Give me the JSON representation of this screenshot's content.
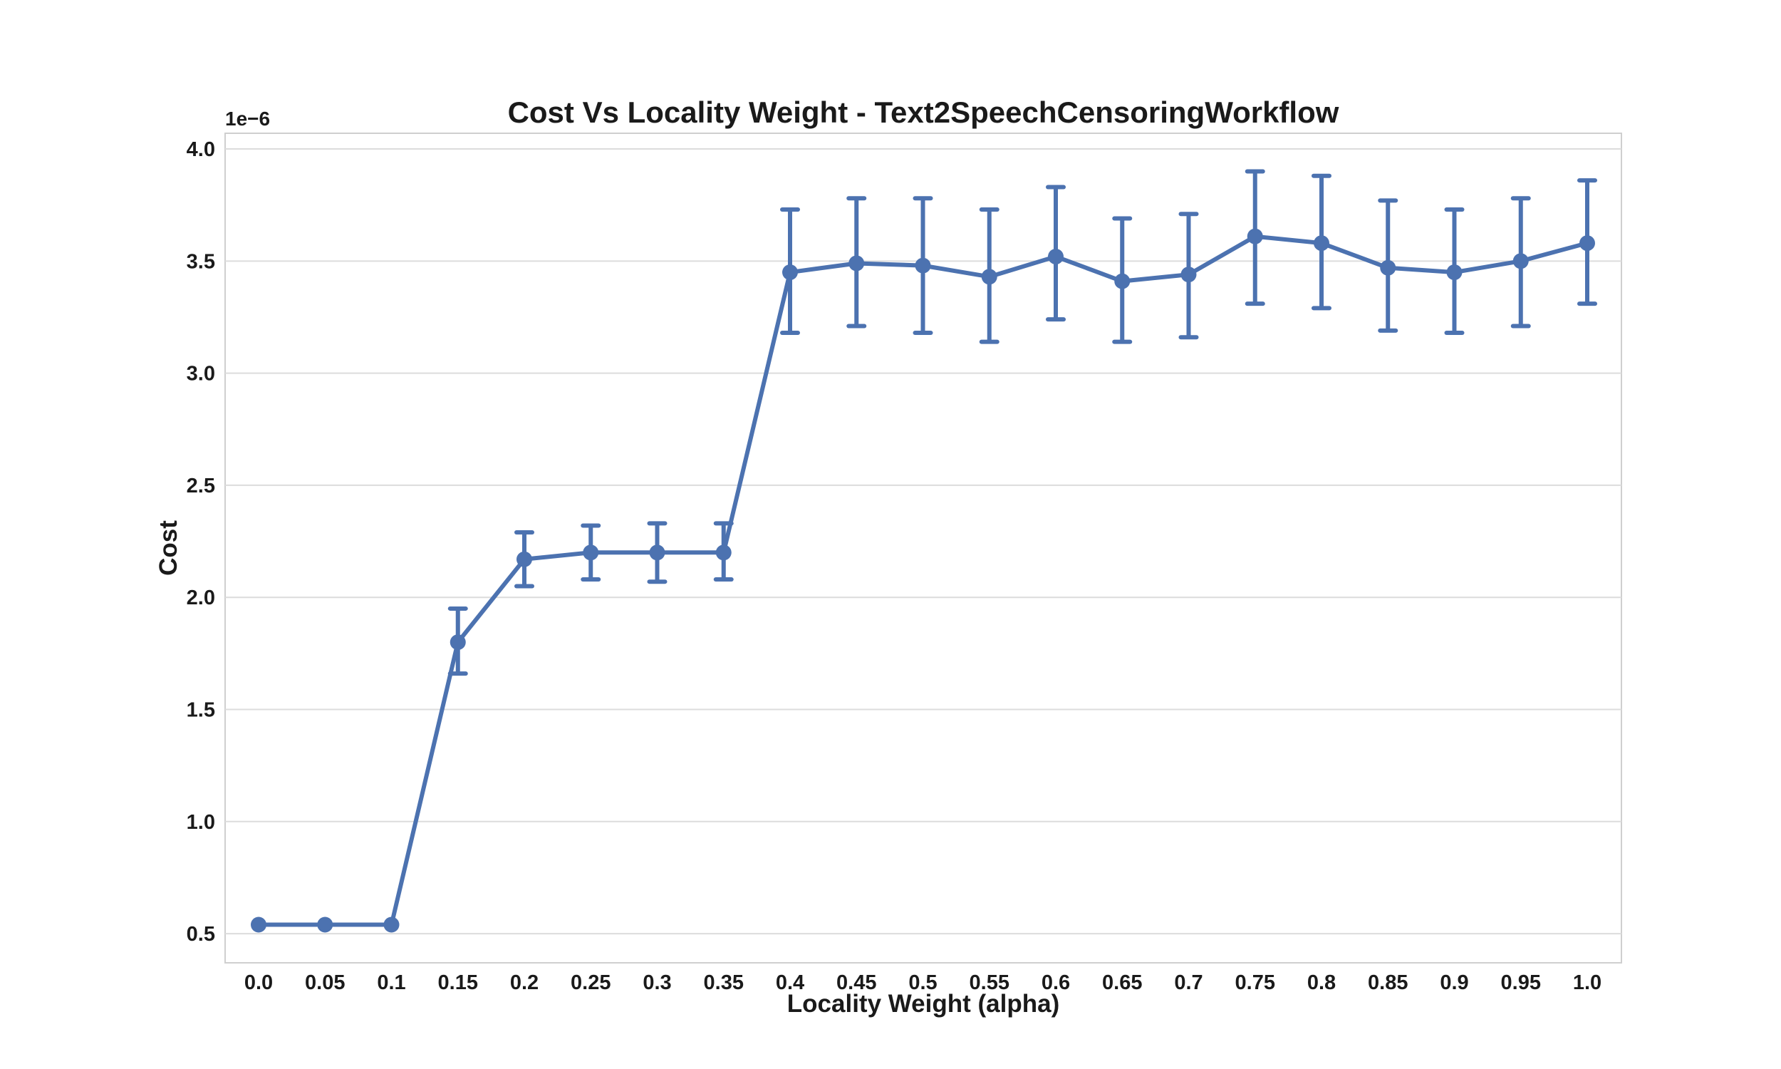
{
  "chart_data": {
    "type": "line",
    "title": "Cost Vs Locality Weight - Text2SpeechCensoringWorkflow",
    "xlabel": "Locality Weight (alpha)",
    "ylabel": "Cost",
    "y_offset_label": "1e−6",
    "categories": [
      "0.0",
      "0.05",
      "0.1",
      "0.15",
      "0.2",
      "0.25",
      "0.3",
      "0.35",
      "0.4",
      "0.45",
      "0.5",
      "0.55",
      "0.6",
      "0.65",
      "0.7",
      "0.75",
      "0.8",
      "0.85",
      "0.9",
      "0.95",
      "1.0"
    ],
    "ylim": [
      0.37,
      4.07
    ],
    "yticks": [
      0.5,
      1.0,
      1.5,
      2.0,
      2.5,
      3.0,
      3.5,
      4.0
    ],
    "ytick_labels": [
      "0.5",
      "1.0",
      "1.5",
      "2.0",
      "2.5",
      "3.0",
      "3.5",
      "4.0"
    ],
    "grid": true,
    "color": "#4c72b0",
    "series": [
      {
        "values": [
          0.54,
          0.54,
          0.54,
          1.8,
          2.17,
          2.2,
          2.2,
          2.2,
          3.45,
          3.49,
          3.48,
          3.43,
          3.52,
          3.41,
          3.44,
          3.61,
          3.58,
          3.47,
          3.45,
          3.5,
          3.58
        ],
        "err_low": [
          0.54,
          0.54,
          0.54,
          1.66,
          2.05,
          2.08,
          2.07,
          2.08,
          3.18,
          3.21,
          3.18,
          3.14,
          3.24,
          3.14,
          3.16,
          3.31,
          3.29,
          3.19,
          3.18,
          3.21,
          3.31
        ],
        "err_high": [
          0.54,
          0.54,
          0.54,
          1.95,
          2.29,
          2.32,
          2.33,
          2.33,
          3.73,
          3.78,
          3.78,
          3.73,
          3.83,
          3.69,
          3.71,
          3.9,
          3.88,
          3.77,
          3.73,
          3.78,
          3.86
        ]
      }
    ]
  }
}
